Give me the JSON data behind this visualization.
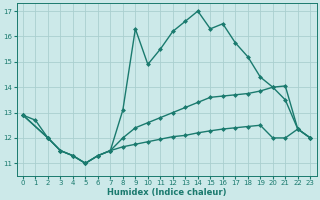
{
  "xlabel": "Humidex (Indice chaleur)",
  "background_color": "#cce9e9",
  "grid_color": "#aacfcf",
  "line_color": "#1a7a6e",
  "xlim": [
    -0.5,
    23.5
  ],
  "ylim": [
    10.5,
    17.3
  ],
  "xticks": [
    0,
    1,
    2,
    3,
    4,
    5,
    6,
    7,
    8,
    9,
    10,
    11,
    12,
    13,
    14,
    15,
    16,
    17,
    18,
    19,
    20,
    21,
    22,
    23
  ],
  "yticks": [
    11,
    12,
    13,
    14,
    15,
    16,
    17
  ],
  "line1_x": [
    0,
    1,
    2,
    3,
    4,
    5,
    6,
    7,
    8,
    9,
    10,
    11,
    12,
    13,
    14,
    15,
    16,
    17,
    18,
    19,
    20,
    21,
    22,
    23
  ],
  "line1_y": [
    12.9,
    12.7,
    12.0,
    11.5,
    11.3,
    11.0,
    11.3,
    11.5,
    13.1,
    16.3,
    14.9,
    15.5,
    16.2,
    16.6,
    17.0,
    16.3,
    16.5,
    15.75,
    15.2,
    14.4,
    14.0,
    13.5,
    12.35,
    12.0
  ],
  "line2_x": [
    0,
    2,
    3,
    4,
    5,
    6,
    7,
    8,
    9,
    10,
    11,
    12,
    13,
    14,
    15,
    16,
    17,
    18,
    19,
    20,
    21,
    22,
    23
  ],
  "line2_y": [
    12.9,
    12.0,
    11.5,
    11.3,
    11.0,
    11.3,
    11.5,
    12.0,
    12.4,
    12.6,
    12.8,
    13.0,
    13.2,
    13.4,
    13.6,
    13.65,
    13.7,
    13.75,
    13.85,
    14.0,
    14.05,
    12.35,
    12.0
  ],
  "line3_x": [
    0,
    2,
    3,
    4,
    5,
    6,
    7,
    8,
    9,
    10,
    11,
    12,
    13,
    14,
    15,
    16,
    17,
    18,
    19,
    20,
    21,
    22,
    23
  ],
  "line3_y": [
    12.9,
    12.0,
    11.5,
    11.3,
    11.0,
    11.3,
    11.5,
    11.65,
    11.75,
    11.85,
    11.95,
    12.05,
    12.1,
    12.2,
    12.28,
    12.35,
    12.4,
    12.45,
    12.5,
    12.0,
    12.0,
    12.35,
    12.0
  ],
  "marker_size": 2.5,
  "line_width": 1.0
}
